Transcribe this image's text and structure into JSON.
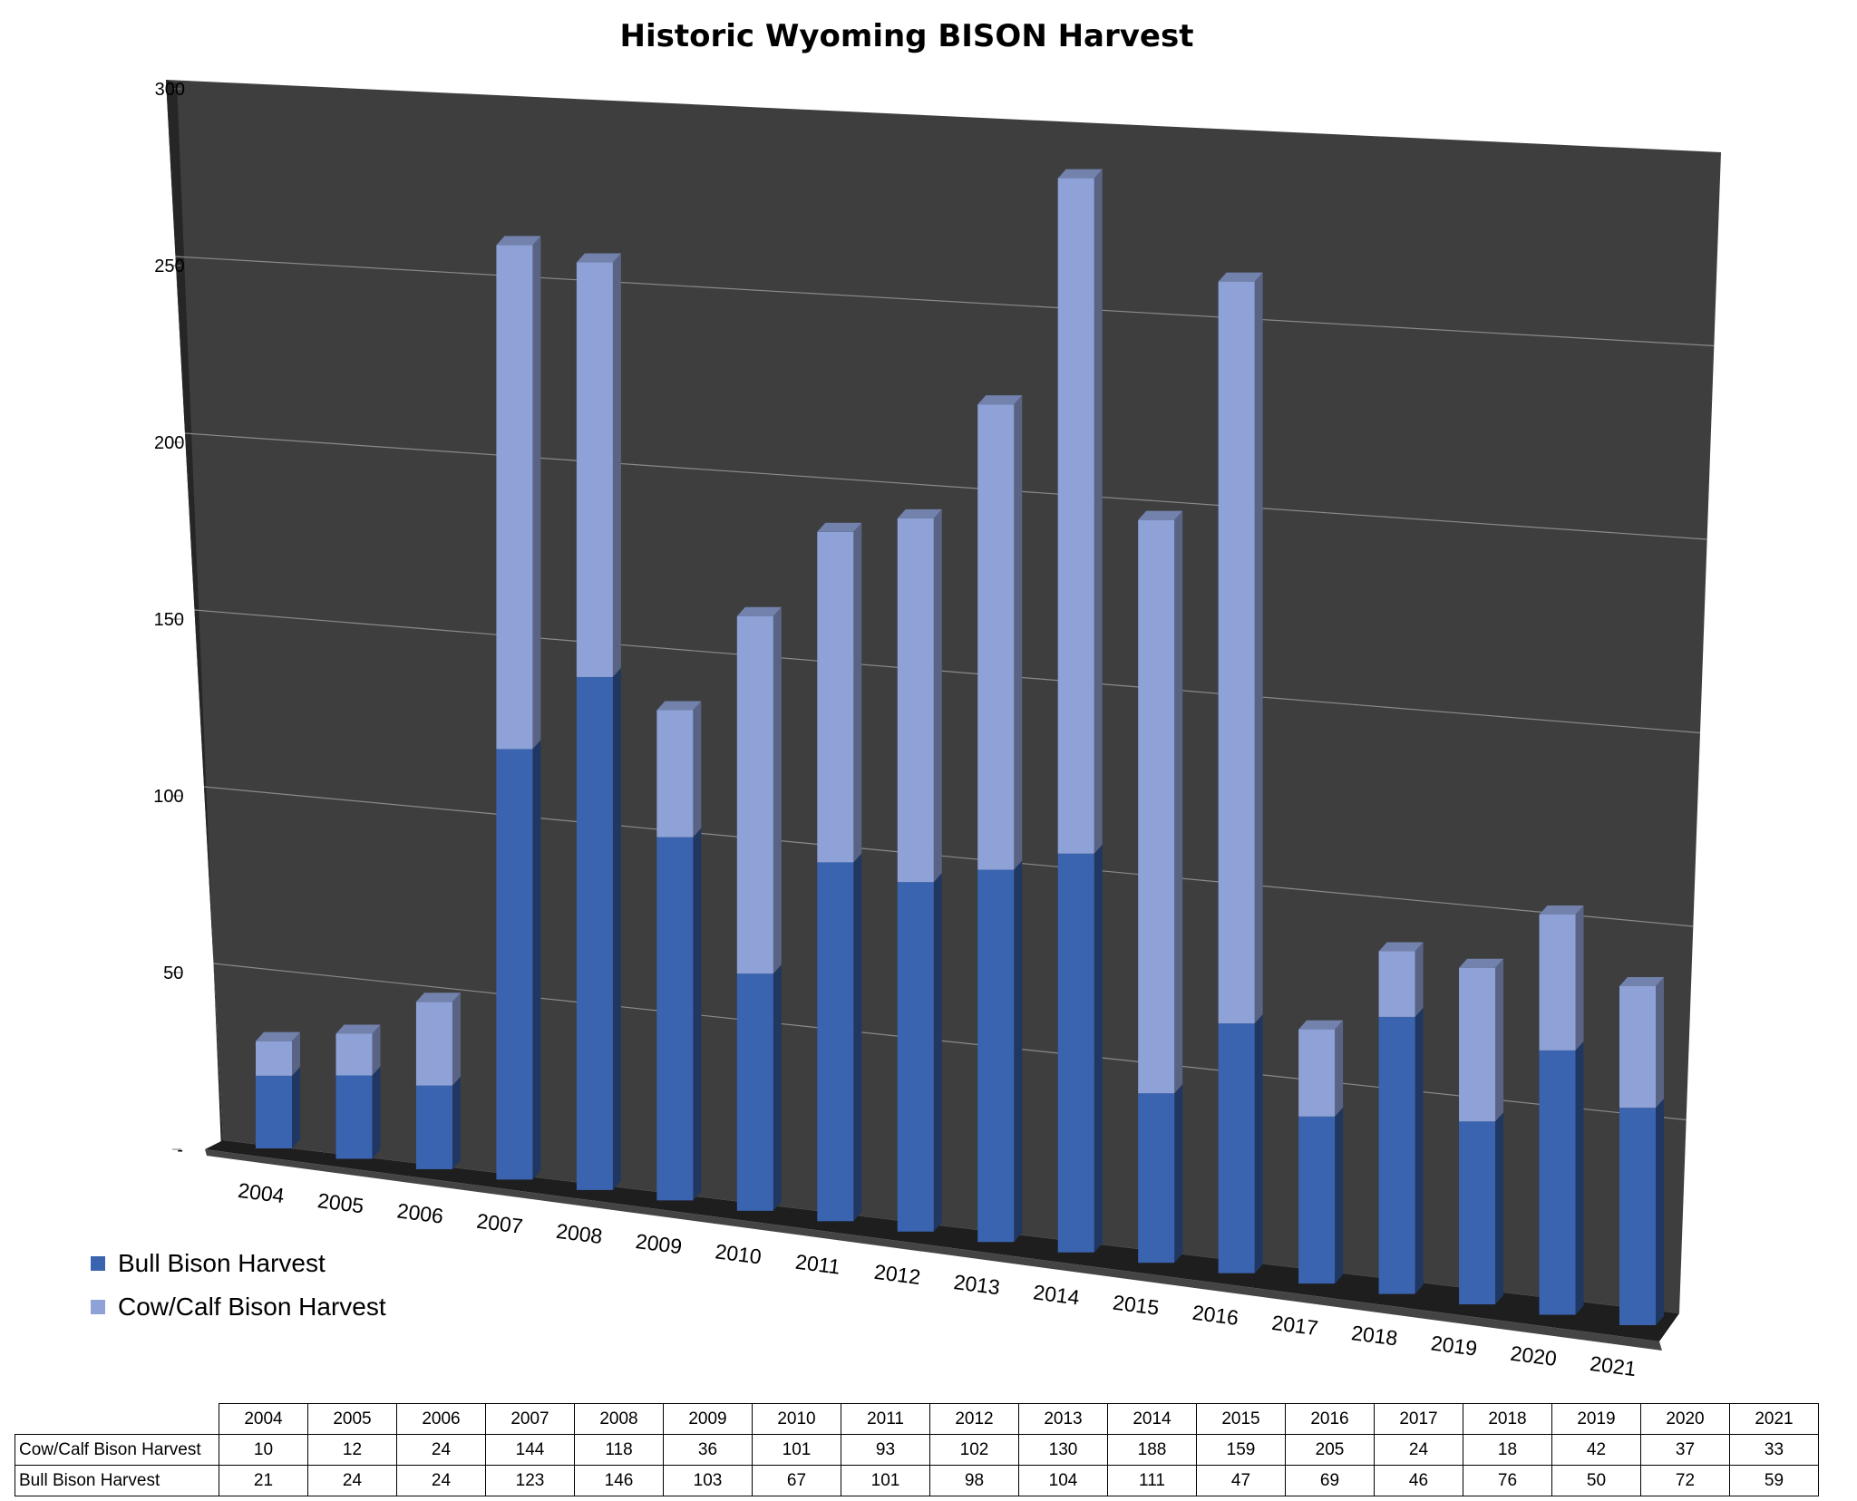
{
  "chart_data": {
    "type": "bar",
    "stacked": true,
    "three_d": true,
    "title": "Historic Wyoming BISON Harvest",
    "categories": [
      "2004",
      "2005",
      "2006",
      "2007",
      "2008",
      "2009",
      "2010",
      "2011",
      "2012",
      "2013",
      "2014",
      "2015",
      "2016",
      "2017",
      "2018",
      "2019",
      "2020",
      "2021"
    ],
    "series": [
      {
        "name": "Bull Bison Harvest",
        "values": [
          21,
          24,
          24,
          123,
          146,
          103,
          67,
          101,
          98,
          104,
          111,
          47,
          69,
          46,
          76,
          50,
          72,
          59
        ],
        "color": "#3A64B0"
      },
      {
        "name": "Cow/Calf Bison Harvest",
        "values": [
          10,
          12,
          24,
          144,
          118,
          36,
          101,
          93,
          102,
          130,
          188,
          159,
          205,
          24,
          18,
          42,
          37,
          33
        ],
        "color": "#8FA2D7"
      }
    ],
    "ylim": [
      0,
      300
    ],
    "yticks": [
      "-",
      "50",
      "100",
      "150",
      "200",
      "250",
      "300"
    ],
    "grid": true,
    "legend": "bottom-left",
    "wall_color": "#3E3E3E",
    "floor_color": "#1E1E1E"
  },
  "table": {
    "headers": [
      "2004",
      "2005",
      "2006",
      "2007",
      "2008",
      "2009",
      "2010",
      "2011",
      "2012",
      "2013",
      "2014",
      "2015",
      "2016",
      "2017",
      "2018",
      "2019",
      "2020",
      "2021"
    ],
    "rows": [
      {
        "label": "Cow/Calf Bison Harvest",
        "values": [
          "10",
          "12",
          "24",
          "144",
          "118",
          "36",
          "101",
          "93",
          "102",
          "130",
          "188",
          "159",
          "205",
          "24",
          "18",
          "42",
          "37",
          "33"
        ]
      },
      {
        "label": "Bull Bison Harvest",
        "values": [
          "21",
          "24",
          "24",
          "123",
          "146",
          "103",
          "67",
          "101",
          "98",
          "104",
          "111",
          "47",
          "69",
          "46",
          "76",
          "50",
          "72",
          "59"
        ]
      }
    ]
  }
}
